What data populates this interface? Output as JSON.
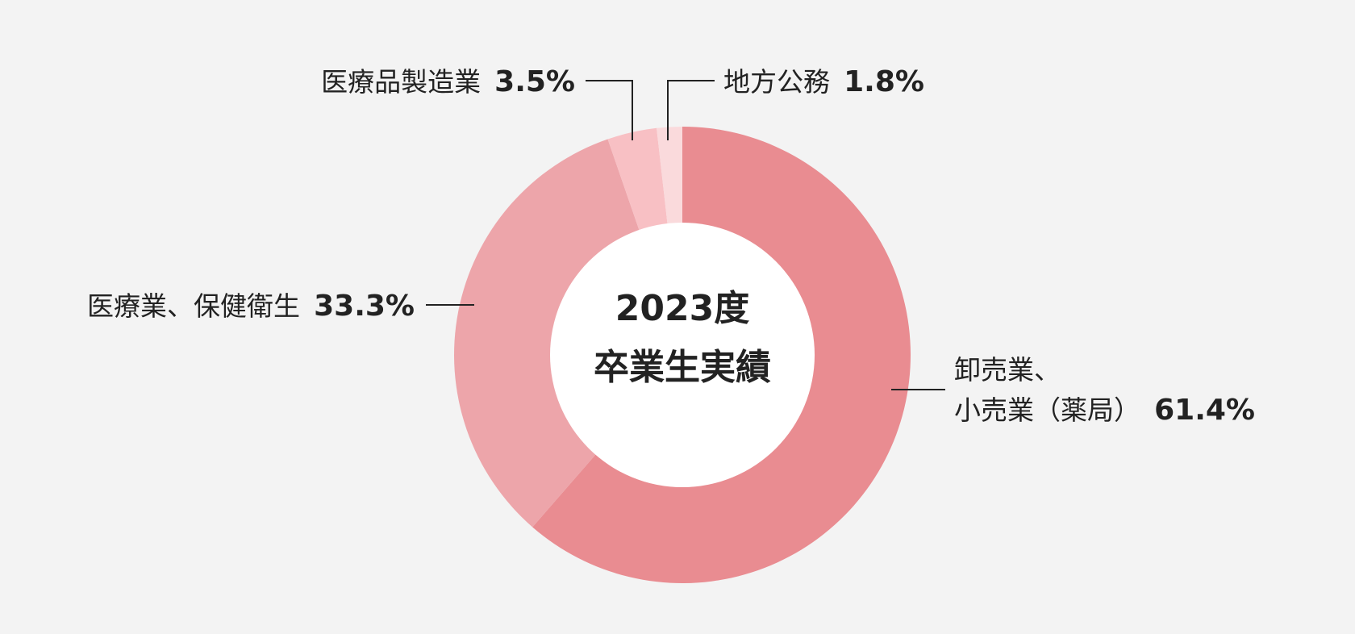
{
  "chart_data": {
    "type": "pie",
    "title": "2023度",
    "subtitle": "卒業生実績",
    "slices": [
      {
        "label_lines": [
          "卸売業、",
          "小売業（薬局）"
        ],
        "value": 61.4,
        "value_label": "61.4%",
        "color": "#e98c91"
      },
      {
        "label_lines": [
          "医療業、保健衛生"
        ],
        "value": 33.3,
        "value_label": "33.3%",
        "color": "#eda5aa"
      },
      {
        "label_lines": [
          "医療品製造業"
        ],
        "value": 3.5,
        "value_label": "3.5%",
        "color": "#f8c0c4"
      },
      {
        "label_lines": [
          "地方公務"
        ],
        "value": 1.8,
        "value_label": "1.8%",
        "color": "#fadadc"
      }
    ],
    "legend": "none",
    "grid": false
  }
}
